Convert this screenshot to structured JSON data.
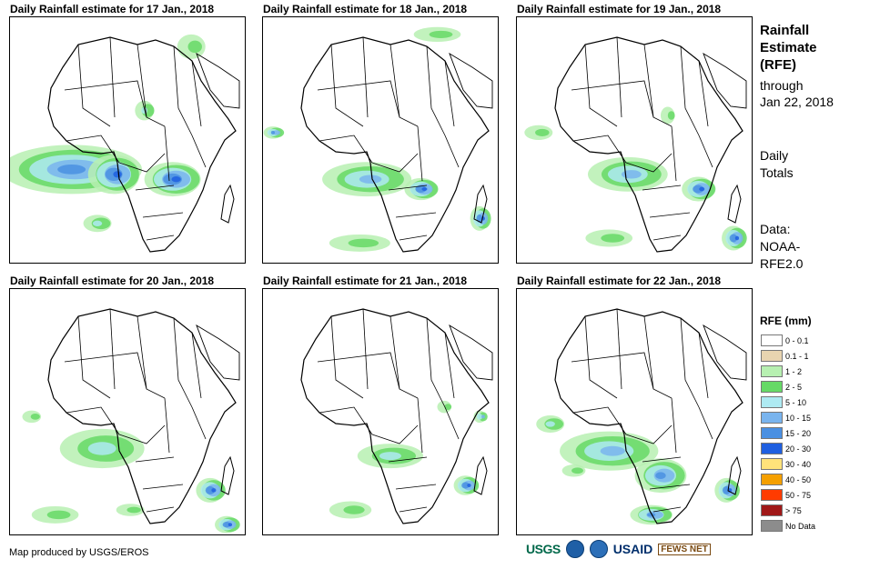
{
  "panels": [
    {
      "title": "Daily Rainfall estimate for 17 Jan., 2018",
      "rain": [
        [
          0.27,
          0.62,
          0.6,
          0.2,
          0.6
        ],
        [
          0.45,
          0.64,
          0.22,
          0.16,
          0.7
        ],
        [
          0.7,
          0.66,
          0.24,
          0.14,
          0.8
        ],
        [
          0.58,
          0.38,
          0.08,
          0.08,
          0.4
        ],
        [
          0.38,
          0.84,
          0.12,
          0.07,
          0.4
        ],
        [
          0.78,
          0.12,
          0.12,
          0.1,
          0.3
        ]
      ]
    },
    {
      "title": "Daily Rainfall estimate for 18 Jan., 2018",
      "rain": [
        [
          0.45,
          0.66,
          0.38,
          0.14,
          0.5
        ],
        [
          0.68,
          0.7,
          0.14,
          0.09,
          0.8
        ],
        [
          0.93,
          0.82,
          0.08,
          0.1,
          0.7
        ],
        [
          0.05,
          0.47,
          0.08,
          0.05,
          0.6
        ],
        [
          0.42,
          0.92,
          0.26,
          0.07,
          0.3
        ],
        [
          0.75,
          0.07,
          0.2,
          0.06,
          0.3
        ]
      ]
    },
    {
      "title": "Daily Rainfall estimate for 19 Jan., 2018",
      "rain": [
        [
          0.48,
          0.64,
          0.34,
          0.14,
          0.5
        ],
        [
          0.78,
          0.7,
          0.14,
          0.1,
          0.7
        ],
        [
          0.93,
          0.9,
          0.1,
          0.1,
          0.7
        ],
        [
          0.1,
          0.47,
          0.12,
          0.06,
          0.3
        ],
        [
          0.65,
          0.4,
          0.06,
          0.07,
          0.3
        ],
        [
          0.4,
          0.9,
          0.2,
          0.07,
          0.3
        ]
      ]
    },
    {
      "title": "Daily Rainfall estimate for 20 Jan., 2018",
      "rain": [
        [
          0.4,
          0.65,
          0.36,
          0.16,
          0.4
        ],
        [
          0.86,
          0.82,
          0.12,
          0.1,
          0.8
        ],
        [
          0.93,
          0.96,
          0.1,
          0.07,
          0.7
        ],
        [
          0.1,
          0.52,
          0.08,
          0.05,
          0.3
        ],
        [
          0.2,
          0.92,
          0.2,
          0.07,
          0.3
        ],
        [
          0.52,
          0.9,
          0.12,
          0.05,
          0.3
        ]
      ]
    },
    {
      "title": "Daily Rainfall estimate for 21 Jan., 2018",
      "rain": [
        [
          0.55,
          0.68,
          0.28,
          0.1,
          0.4
        ],
        [
          0.87,
          0.8,
          0.1,
          0.08,
          0.7
        ],
        [
          0.38,
          0.9,
          0.18,
          0.07,
          0.3
        ],
        [
          0.78,
          0.48,
          0.06,
          0.05,
          0.3
        ],
        [
          0.93,
          0.52,
          0.05,
          0.05,
          0.5
        ]
      ]
    },
    {
      "title": "Daily Rainfall estimate for 22 Jan., 2018",
      "rain": [
        [
          0.4,
          0.66,
          0.42,
          0.16,
          0.5
        ],
        [
          0.62,
          0.76,
          0.22,
          0.14,
          0.6
        ],
        [
          0.9,
          0.82,
          0.1,
          0.1,
          0.7
        ],
        [
          0.58,
          0.92,
          0.18,
          0.08,
          0.6
        ],
        [
          0.15,
          0.55,
          0.12,
          0.07,
          0.4
        ],
        [
          0.25,
          0.74,
          0.1,
          0.05,
          0.3
        ]
      ]
    }
  ],
  "side": {
    "title_line1": "Rainfall",
    "title_line2": "Estimate",
    "title_line3": "(RFE)",
    "through": "through",
    "date": "Jan 22, 2018",
    "totals_line1": "Daily",
    "totals_line2": "Totals",
    "data_line1": "Data:",
    "data_line2": "NOAA-",
    "data_line3": "RFE2.0"
  },
  "legend": {
    "title": "RFE (mm)",
    "items": [
      {
        "label": "0 - 0.1",
        "color": "#ffffff"
      },
      {
        "label": "0.1 - 1",
        "color": "#e8d4b0"
      },
      {
        "label": "1 - 2",
        "color": "#b7f0b1"
      },
      {
        "label": "2 - 5",
        "color": "#66d966"
      },
      {
        "label": "5 - 10",
        "color": "#aeeaf2"
      },
      {
        "label": "10 - 15",
        "color": "#79b4ee"
      },
      {
        "label": "15 - 20",
        "color": "#4a90e2"
      },
      {
        "label": "20 - 30",
        "color": "#1f5fe0"
      },
      {
        "label": "30 - 40",
        "color": "#ffe27a"
      },
      {
        "label": "40 - 50",
        "color": "#f5a000"
      },
      {
        "label": "50 - 75",
        "color": "#ff3b00"
      },
      {
        "label": "> 75",
        "color": "#a01818"
      },
      {
        "label": "No Data",
        "color": "#8c8c8c"
      }
    ]
  },
  "credit": "Map produced by USGS/EROS",
  "logos": {
    "usgs": "USGS",
    "usaid": "USAID",
    "fews": "FEWS NET"
  }
}
